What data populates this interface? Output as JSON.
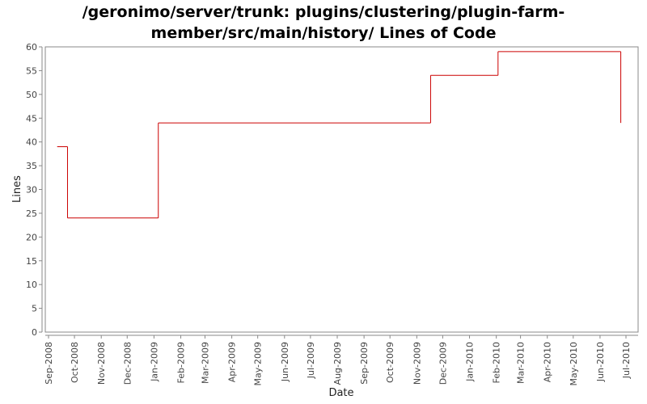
{
  "chart_data": {
    "type": "line",
    "title_line1": "/geronimo/server/trunk: plugins/clustering/plugin-farm-",
    "title_line2": "member/src/main/history/ Lines of Code",
    "xlabel": "Date",
    "ylabel": "Lines",
    "ylim": [
      0,
      60
    ],
    "yticks": [
      0,
      5,
      10,
      15,
      20,
      25,
      30,
      35,
      40,
      45,
      50,
      55,
      60
    ],
    "xlim": [
      "2008-09-01",
      "2010-07-01"
    ],
    "xticks": [
      {
        "date": "2008-09-01",
        "label": "Sep-2008"
      },
      {
        "date": "2008-10-01",
        "label": "Oct-2008"
      },
      {
        "date": "2008-11-01",
        "label": "Nov-2008"
      },
      {
        "date": "2008-12-01",
        "label": "Dec-2008"
      },
      {
        "date": "2009-01-01",
        "label": "Jan-2009"
      },
      {
        "date": "2009-02-01",
        "label": "Feb-2009"
      },
      {
        "date": "2009-03-01",
        "label": "Mar-2009"
      },
      {
        "date": "2009-04-01",
        "label": "Apr-2009"
      },
      {
        "date": "2009-05-01",
        "label": "May-2009"
      },
      {
        "date": "2009-06-01",
        "label": "Jun-2009"
      },
      {
        "date": "2009-07-01",
        "label": "Jul-2009"
      },
      {
        "date": "2009-08-01",
        "label": "Aug-2009"
      },
      {
        "date": "2009-09-01",
        "label": "Sep-2009"
      },
      {
        "date": "2009-10-01",
        "label": "Oct-2009"
      },
      {
        "date": "2009-11-01",
        "label": "Nov-2009"
      },
      {
        "date": "2009-12-01",
        "label": "Dec-2009"
      },
      {
        "date": "2010-01-01",
        "label": "Jan-2010"
      },
      {
        "date": "2010-02-01",
        "label": "Feb-2010"
      },
      {
        "date": "2010-03-01",
        "label": "Mar-2010"
      },
      {
        "date": "2010-04-01",
        "label": "Apr-2010"
      },
      {
        "date": "2010-05-01",
        "label": "May-2010"
      },
      {
        "date": "2010-06-01",
        "label": "Jun-2010"
      },
      {
        "date": "2010-07-01",
        "label": "Jul-2010"
      }
    ],
    "grid": false,
    "series": [
      {
        "color": "#cc0000",
        "step": true,
        "points": [
          {
            "x": "2008-09-11",
            "y": 39
          },
          {
            "x": "2008-09-23",
            "y": 24
          },
          {
            "x": "2009-01-06",
            "y": 44
          },
          {
            "x": "2009-11-17",
            "y": 54
          },
          {
            "x": "2010-02-03",
            "y": 59
          },
          {
            "x": "2010-06-25",
            "y": 44
          }
        ]
      }
    ]
  }
}
